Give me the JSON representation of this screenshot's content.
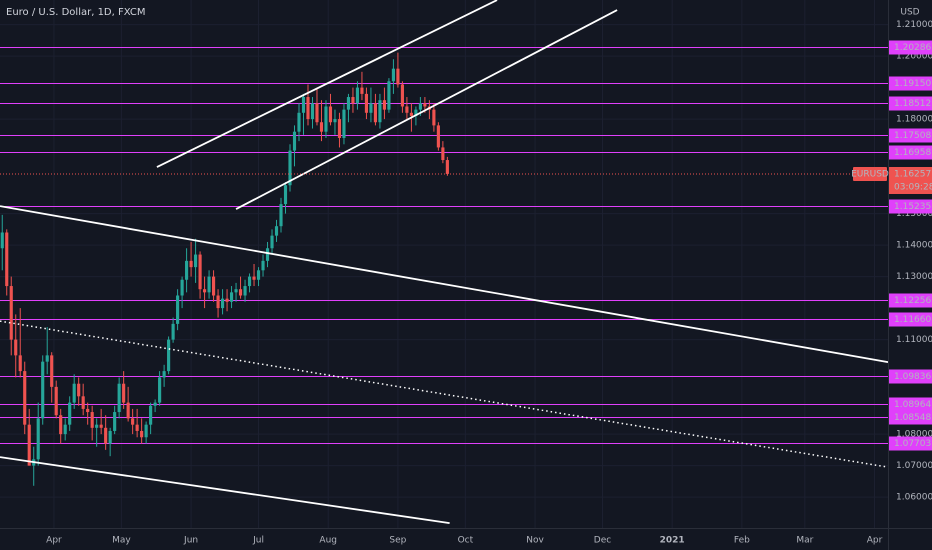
{
  "chart_data": {
    "type": "candlestick",
    "title": "Euro / U.S. Dollar, 1D, FXCM",
    "currency": "USD",
    "symbol": "EURUSD",
    "last_price": {
      "value": 1.16257,
      "label": "1.16257"
    },
    "countdown": "03:09:28",
    "up_color": "#26a69a",
    "down_color": "#ef5350",
    "level_color": "#e040fb",
    "xlim": [
      7,
      402
    ],
    "ylim": [
      1.0502,
      1.2178
    ],
    "xticks": [
      {
        "value": 31,
        "label": "Apr"
      },
      {
        "value": 61,
        "label": "May"
      },
      {
        "value": 92,
        "label": "Jun"
      },
      {
        "value": 122,
        "label": "Jul"
      },
      {
        "value": 153,
        "label": "Aug"
      },
      {
        "value": 184,
        "label": "Sep"
      },
      {
        "value": 214,
        "label": "Oct"
      },
      {
        "value": 245,
        "label": "Nov"
      },
      {
        "value": 275,
        "label": "Dec"
      },
      {
        "value": 306,
        "label": "2021"
      },
      {
        "value": 337,
        "label": "Feb"
      },
      {
        "value": 365,
        "label": "Mar"
      },
      {
        "value": 396,
        "label": "Apr"
      }
    ],
    "yticks": [
      {
        "value": 1.21,
        "label": "1.21000"
      },
      {
        "value": 1.2,
        "label": "1.20000"
      },
      {
        "value": 1.18,
        "label": "1.18000"
      },
      {
        "value": 1.15,
        "label": "1.15000"
      },
      {
        "value": 1.14,
        "label": "1.14000"
      },
      {
        "value": 1.13,
        "label": "1.13000"
      },
      {
        "value": 1.11,
        "label": "1.11000"
      },
      {
        "value": 1.08,
        "label": "1.08000"
      },
      {
        "value": 1.07,
        "label": "1.07000"
      },
      {
        "value": 1.06,
        "label": "1.06000"
      }
    ],
    "levels": [
      1.20286,
      {
        "value": 1.1915,
        "label": "1.19150"
      },
      1.18512,
      1.17508,
      1.16958,
      1.15235,
      1.12256,
      {
        "value": 1.1166,
        "label": "1.11660"
      },
      1.09836,
      1.08964,
      1.08548,
      1.07703
    ],
    "trendlines": [
      {
        "x": [
          76.8,
          228.1
        ],
        "y": [
          1.16476,
          1.21778
        ],
        "style": "solid"
      },
      {
        "x": [
          112,
          281.5
        ],
        "y": [
          1.15143,
          1.2146
        ],
        "style": "solid"
      },
      {
        "x": [
          7,
          402
        ],
        "y": [
          1.15238,
          1.10286
        ],
        "style": "solid"
      },
      {
        "x": [
          7,
          207
        ],
        "y": [
          1.0727,
          1.05175
        ],
        "style": "solid"
      },
      {
        "x": [
          7,
          402
        ],
        "y": [
          1.11587,
          1.06952
        ],
        "style": "dotted"
      }
    ],
    "x": [
      8,
      10,
      12,
      14,
      16,
      18,
      20,
      22,
      24,
      26,
      28,
      30,
      32,
      34,
      36,
      38,
      40,
      42,
      44,
      46,
      48,
      50,
      52,
      54,
      56,
      58,
      60,
      62,
      64,
      66,
      68,
      70,
      72,
      74,
      76,
      78,
      80,
      82,
      84,
      86,
      88,
      90,
      92,
      94,
      96,
      98,
      100,
      102,
      104,
      106,
      108,
      110,
      112,
      114,
      116,
      118,
      120,
      122,
      124,
      126,
      128,
      130,
      132,
      134,
      136,
      138,
      140,
      142,
      144,
      146,
      148,
      150,
      152,
      154,
      156,
      158,
      160,
      162,
      164,
      166,
      168,
      170,
      172,
      174,
      176,
      178,
      180,
      182,
      184,
      186,
      188,
      190,
      192,
      194,
      196,
      198,
      200,
      202,
      204,
      206
    ],
    "open": [
      1.139,
      1.144,
      1.127,
      1.11,
      1.105,
      1.1,
      1.083,
      1.07,
      1.072,
      1.085,
      1.103,
      1.105,
      1.095,
      1.086,
      1.08,
      1.083,
      1.09,
      1.096,
      1.092,
      1.088,
      1.087,
      1.082,
      1.083,
      1.082,
      1.077,
      1.081,
      1.087,
      1.096,
      1.09,
      1.085,
      1.083,
      1.081,
      1.079,
      1.083,
      1.089,
      1.09,
      1.098,
      1.1,
      1.11,
      1.115,
      1.124,
      1.129,
      1.135,
      1.133,
      1.137,
      1.126,
      1.125,
      1.13,
      1.124,
      1.12,
      1.123,
      1.122,
      1.125,
      1.126,
      1.124,
      1.127,
      1.13,
      1.129,
      1.132,
      1.135,
      1.139,
      1.143,
      1.146,
      1.153,
      1.159,
      1.17,
      1.176,
      1.182,
      1.187,
      1.18,
      1.185,
      1.179,
      1.176,
      1.184,
      1.179,
      1.18,
      1.174,
      1.183,
      1.187,
      1.185,
      1.19,
      1.188,
      1.182,
      1.185,
      1.179,
      1.186,
      1.183,
      1.192,
      1.196,
      1.191,
      1.184,
      1.182,
      1.181,
      1.183,
      1.185,
      1.184,
      1.183,
      1.178,
      1.171,
      1.167
    ],
    "high": [
      1.1496,
      1.145,
      1.13,
      1.118,
      1.12,
      1.103,
      1.088,
      1.076,
      1.09,
      1.105,
      1.114,
      1.106,
      1.097,
      1.088,
      1.085,
      1.092,
      1.099,
      1.098,
      1.096,
      1.09,
      1.089,
      1.085,
      1.088,
      1.086,
      1.082,
      1.089,
      1.098,
      1.1,
      1.095,
      1.088,
      1.088,
      1.085,
      1.084,
      1.09,
      1.091,
      1.1,
      1.102,
      1.111,
      1.117,
      1.126,
      1.13,
      1.139,
      1.141,
      1.142,
      1.138,
      1.13,
      1.132,
      1.132,
      1.126,
      1.126,
      1.126,
      1.127,
      1.128,
      1.13,
      1.129,
      1.131,
      1.134,
      1.133,
      1.137,
      1.141,
      1.145,
      1.148,
      1.155,
      1.16,
      1.172,
      1.178,
      1.185,
      1.188,
      1.191,
      1.187,
      1.19,
      1.186,
      1.186,
      1.188,
      1.183,
      1.182,
      1.185,
      1.188,
      1.19,
      1.192,
      1.195,
      1.19,
      1.19,
      1.188,
      1.188,
      1.19,
      1.193,
      1.199,
      1.2011,
      1.192,
      1.187,
      1.185,
      1.184,
      1.187,
      1.187,
      1.186,
      1.185,
      1.179,
      1.173,
      1.168
    ],
    "low": [
      1.132,
      1.124,
      1.105,
      1.098,
      1.098,
      1.08,
      1.07,
      1.0636,
      1.07,
      1.083,
      1.099,
      1.09,
      1.085,
      1.077,
      1.078,
      1.081,
      1.088,
      1.089,
      1.086,
      1.083,
      1.078,
      1.076,
      1.08,
      1.075,
      1.073,
      1.08,
      1.085,
      1.088,
      1.084,
      1.08,
      1.079,
      1.077,
      1.077,
      1.08,
      1.087,
      1.089,
      1.095,
      1.099,
      1.109,
      1.113,
      1.12,
      1.125,
      1.13,
      1.128,
      1.123,
      1.12,
      1.123,
      1.122,
      1.117,
      1.118,
      1.119,
      1.12,
      1.122,
      1.123,
      1.122,
      1.125,
      1.127,
      1.127,
      1.13,
      1.133,
      1.137,
      1.141,
      1.144,
      1.15,
      1.157,
      1.165,
      1.173,
      1.175,
      1.178,
      1.177,
      1.178,
      1.173,
      1.174,
      1.178,
      1.175,
      1.171,
      1.172,
      1.179,
      1.182,
      1.183,
      1.186,
      1.18,
      1.179,
      1.178,
      1.177,
      1.18,
      1.182,
      1.188,
      1.19,
      1.182,
      1.18,
      1.176,
      1.178,
      1.181,
      1.182,
      1.18,
      1.176,
      1.17,
      1.166,
      1.162
    ],
    "close": [
      1.144,
      1.127,
      1.11,
      1.105,
      1.1,
      1.083,
      1.07,
      1.072,
      1.085,
      1.103,
      1.105,
      1.095,
      1.086,
      1.08,
      1.083,
      1.09,
      1.096,
      1.092,
      1.088,
      1.087,
      1.082,
      1.083,
      1.082,
      1.077,
      1.081,
      1.087,
      1.096,
      1.09,
      1.085,
      1.083,
      1.081,
      1.079,
      1.083,
      1.089,
      1.09,
      1.098,
      1.1,
      1.11,
      1.115,
      1.124,
      1.129,
      1.135,
      1.133,
      1.137,
      1.126,
      1.125,
      1.13,
      1.124,
      1.12,
      1.123,
      1.122,
      1.125,
      1.126,
      1.124,
      1.127,
      1.13,
      1.129,
      1.132,
      1.135,
      1.139,
      1.143,
      1.146,
      1.153,
      1.159,
      1.17,
      1.176,
      1.182,
      1.187,
      1.18,
      1.185,
      1.179,
      1.176,
      1.184,
      1.179,
      1.18,
      1.174,
      1.183,
      1.187,
      1.185,
      1.19,
      1.188,
      1.182,
      1.185,
      1.179,
      1.186,
      1.183,
      1.192,
      1.196,
      1.191,
      1.184,
      1.182,
      1.181,
      1.183,
      1.185,
      1.184,
      1.183,
      1.178,
      1.171,
      1.167,
      1.1626
    ]
  }
}
